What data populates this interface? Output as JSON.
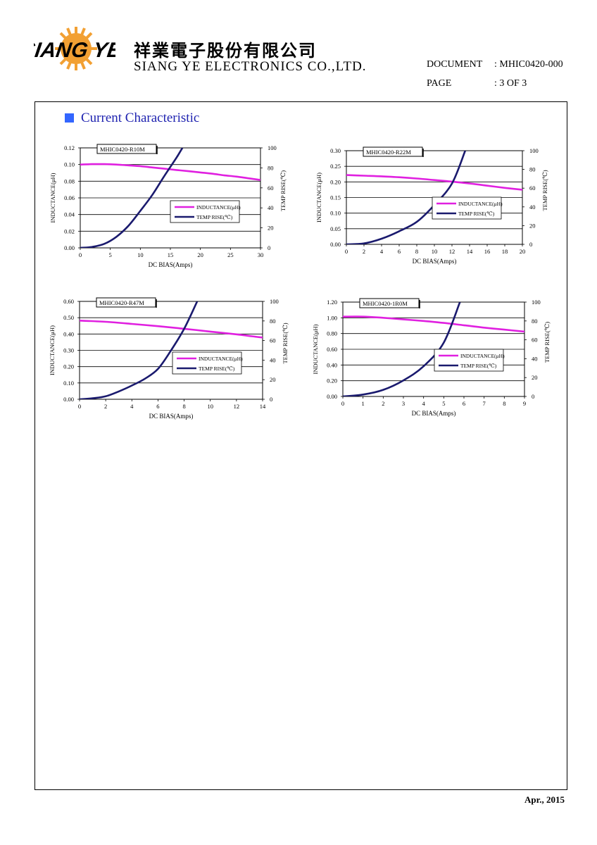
{
  "header": {
    "logo_text": "SIANG YE",
    "company_cn": "祥業電子股份有限公司",
    "company_en": "SIANG YE ELECTRONICS CO.,LTD.",
    "document_label": "DOCUMENT",
    "document_value": ": MHIC0420-000",
    "page_label": "PAGE",
    "page_value": ": 3 OF 3"
  },
  "section_title": "Current Characteristic",
  "footer_date": "Apr., 2015",
  "colors": {
    "inductance": "#e020e0",
    "temp": "#1a1a6e",
    "section_square": "#3366ff",
    "section_text": "#1f23b0"
  },
  "chart_data": [
    {
      "type": "line",
      "title": "MHIC0420-R10M",
      "xlabel": "DC BIAS(Amps)",
      "ylabel": "INDUCTANCE(μH)",
      "y2label": "TEMP RISE(℃)",
      "xlim": [
        0,
        30
      ],
      "xticks": [
        0,
        5,
        10,
        15,
        20,
        25,
        30
      ],
      "ylim": [
        0,
        0.12
      ],
      "yticks": [
        "0.00",
        "0.02",
        "0.04",
        "0.06",
        "0.08",
        "0.10",
        "0.12"
      ],
      "y2lim": [
        0,
        100
      ],
      "y2ticks": [
        0,
        20,
        40,
        60,
        80,
        100
      ],
      "grid": true,
      "legend_position": "lower-right",
      "series": [
        {
          "name": "INDUCTANCE(μH)",
          "axis": "left",
          "x": [
            0,
            2,
            4,
            6,
            8,
            10,
            12,
            14,
            16,
            18,
            20,
            22,
            24,
            26,
            28,
            30
          ],
          "y": [
            0.1,
            0.1005,
            0.1005,
            0.1,
            0.099,
            0.098,
            0.0965,
            0.095,
            0.0935,
            0.092,
            0.0905,
            0.089,
            0.087,
            0.0855,
            0.0835,
            0.0815
          ]
        },
        {
          "name": "TEMP RISE(℃)",
          "axis": "right",
          "x": [
            0,
            2,
            4,
            6,
            8,
            10,
            12,
            14,
            16,
            17
          ],
          "y": [
            0,
            1,
            4,
            11,
            22,
            37,
            53,
            72,
            90,
            100
          ]
        }
      ]
    },
    {
      "type": "line",
      "title": "MHIC0420-R22M",
      "xlabel": "DC BIAS(Amps)",
      "ylabel": "INDUCTANCE(μH)",
      "y2label": "TEMP RISE(℃)",
      "xlim": [
        0,
        20
      ],
      "xticks": [
        0,
        2,
        4,
        6,
        8,
        10,
        12,
        14,
        16,
        18,
        20
      ],
      "ylim": [
        0,
        0.3
      ],
      "yticks": [
        "0.00",
        "0.05",
        "0.10",
        "0.15",
        "0.20",
        "0.25",
        "0.30"
      ],
      "y2lim": [
        0,
        100
      ],
      "y2ticks": [
        0,
        20,
        40,
        60,
        80,
        100
      ],
      "grid": true,
      "legend_position": "lower-right",
      "series": [
        {
          "name": "INDUCTANCE(μH)",
          "axis": "left",
          "x": [
            0,
            2,
            4,
            6,
            8,
            10,
            12,
            14,
            16,
            18,
            20
          ],
          "y": [
            0.222,
            0.22,
            0.218,
            0.215,
            0.211,
            0.206,
            0.201,
            0.195,
            0.188,
            0.181,
            0.175
          ]
        },
        {
          "name": "TEMP RISE(℃)",
          "axis": "right",
          "x": [
            0,
            2,
            4,
            6,
            8,
            10,
            12,
            13.5
          ],
          "y": [
            0,
            1,
            6,
            14,
            24,
            42,
            65,
            100
          ]
        }
      ]
    },
    {
      "type": "line",
      "title": "MHIC0420-R47M",
      "xlabel": "DC BIAS(Amps)",
      "ylabel": "INDUCTANCE(μH)",
      "y2label": "TEMP RISE(℃)",
      "xlim": [
        0,
        14
      ],
      "xticks": [
        0,
        2,
        4,
        6,
        8,
        10,
        12,
        14
      ],
      "ylim": [
        0,
        0.6
      ],
      "yticks": [
        "0.00",
        "0.10",
        "0.20",
        "0.30",
        "0.40",
        "0.50",
        "0.60"
      ],
      "y2lim": [
        0,
        100
      ],
      "y2ticks": [
        0,
        20,
        40,
        60,
        80,
        100
      ],
      "grid": true,
      "legend_position": "lower-right",
      "series": [
        {
          "name": "INDUCTANCE(μH)",
          "axis": "left",
          "x": [
            0,
            2,
            4,
            6,
            8,
            10,
            12,
            14
          ],
          "y": [
            0.482,
            0.475,
            0.462,
            0.448,
            0.432,
            0.415,
            0.398,
            0.378
          ]
        },
        {
          "name": "TEMP RISE(℃)",
          "axis": "right",
          "x": [
            0,
            1,
            2,
            3,
            4,
            5,
            6,
            7,
            8,
            9
          ],
          "y": [
            0,
            1,
            3,
            8,
            14,
            21,
            31,
            50,
            72,
            100
          ]
        }
      ]
    },
    {
      "type": "line",
      "title": "MHIC0420-1R0M",
      "xlabel": "DC BIAS(Amps)",
      "ylabel": "INDUCTANCE(μH)",
      "y2label": "TEMP RISE(℃)",
      "xlim": [
        0,
        9
      ],
      "xticks": [
        0,
        1,
        2,
        3,
        4,
        5,
        6,
        7,
        8,
        9
      ],
      "ylim": [
        0,
        1.2
      ],
      "yticks": [
        "0.00",
        "0.20",
        "0.40",
        "0.60",
        "0.80",
        "1.00",
        "1.20"
      ],
      "y2lim": [
        0,
        100
      ],
      "y2ticks": [
        0,
        20,
        40,
        60,
        80,
        100
      ],
      "grid": true,
      "legend_position": "lower-right",
      "series": [
        {
          "name": "INDUCTANCE(μH)",
          "axis": "left",
          "x": [
            0,
            1,
            2,
            3,
            4,
            5,
            6,
            7,
            8,
            9
          ],
          "y": [
            1.015,
            1.015,
            1.0,
            0.98,
            0.96,
            0.935,
            0.905,
            0.875,
            0.85,
            0.825
          ]
        },
        {
          "name": "TEMP RISE(℃)",
          "axis": "right",
          "x": [
            0,
            1,
            2,
            3,
            4,
            5,
            5.8
          ],
          "y": [
            0,
            2,
            7,
            17,
            32,
            57,
            100
          ]
        }
      ]
    }
  ]
}
